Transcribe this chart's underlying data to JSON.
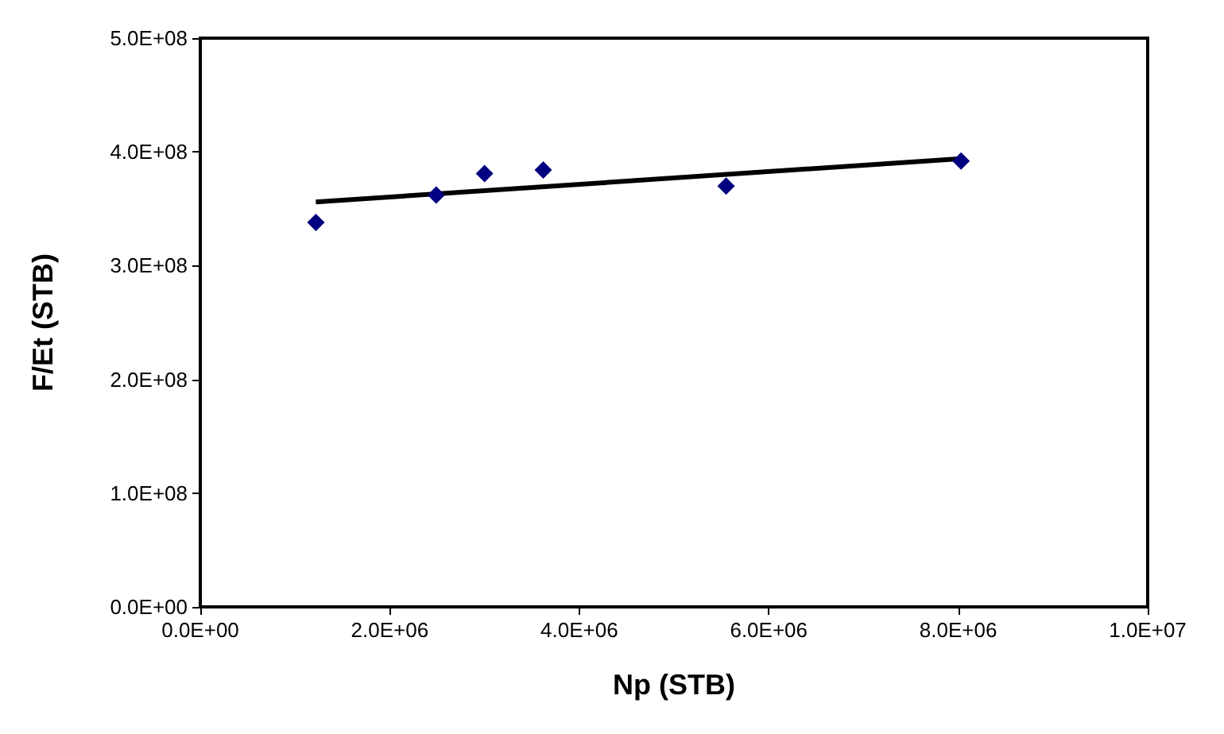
{
  "chart_data": {
    "type": "scatter",
    "xlabel": "Np (STB)",
    "ylabel": "F/Et (STB)",
    "xlim": [
      0,
      10000000
    ],
    "xticks": [
      {
        "value": 0,
        "label": "0.0E+00"
      },
      {
        "value": 2000000,
        "label": "2.0E+06"
      },
      {
        "value": 4000000,
        "label": "4.0E+06"
      },
      {
        "value": 6000000,
        "label": "6.0E+06"
      },
      {
        "value": 8000000,
        "label": "8.0E+06"
      },
      {
        "value": 10000000,
        "label": "1.0E+07"
      }
    ],
    "ylim": [
      0,
      500000000
    ],
    "yticks": [
      {
        "value": 0,
        "label": "0.0E+00"
      },
      {
        "value": 100000000,
        "label": "1.0E+08"
      },
      {
        "value": 200000000,
        "label": "2.0E+08"
      },
      {
        "value": 300000000,
        "label": "3.0E+08"
      },
      {
        "value": 400000000,
        "label": "4.0E+08"
      },
      {
        "value": 500000000,
        "label": "5.0E+08"
      }
    ],
    "grid": false,
    "series": [
      {
        "marker": "diamond",
        "color": "#000080",
        "x": [
          1220000,
          2490000,
          3000000,
          3620000,
          5550000,
          8030000
        ],
        "values": [
          338000000,
          362000000,
          381000000,
          384000000,
          370000000,
          392000000
        ]
      },
      {
        "type": "line",
        "marker": "none",
        "color": "#000000",
        "x": [
          1220000,
          8030000
        ],
        "values": [
          356000000,
          394000000
        ]
      }
    ]
  }
}
